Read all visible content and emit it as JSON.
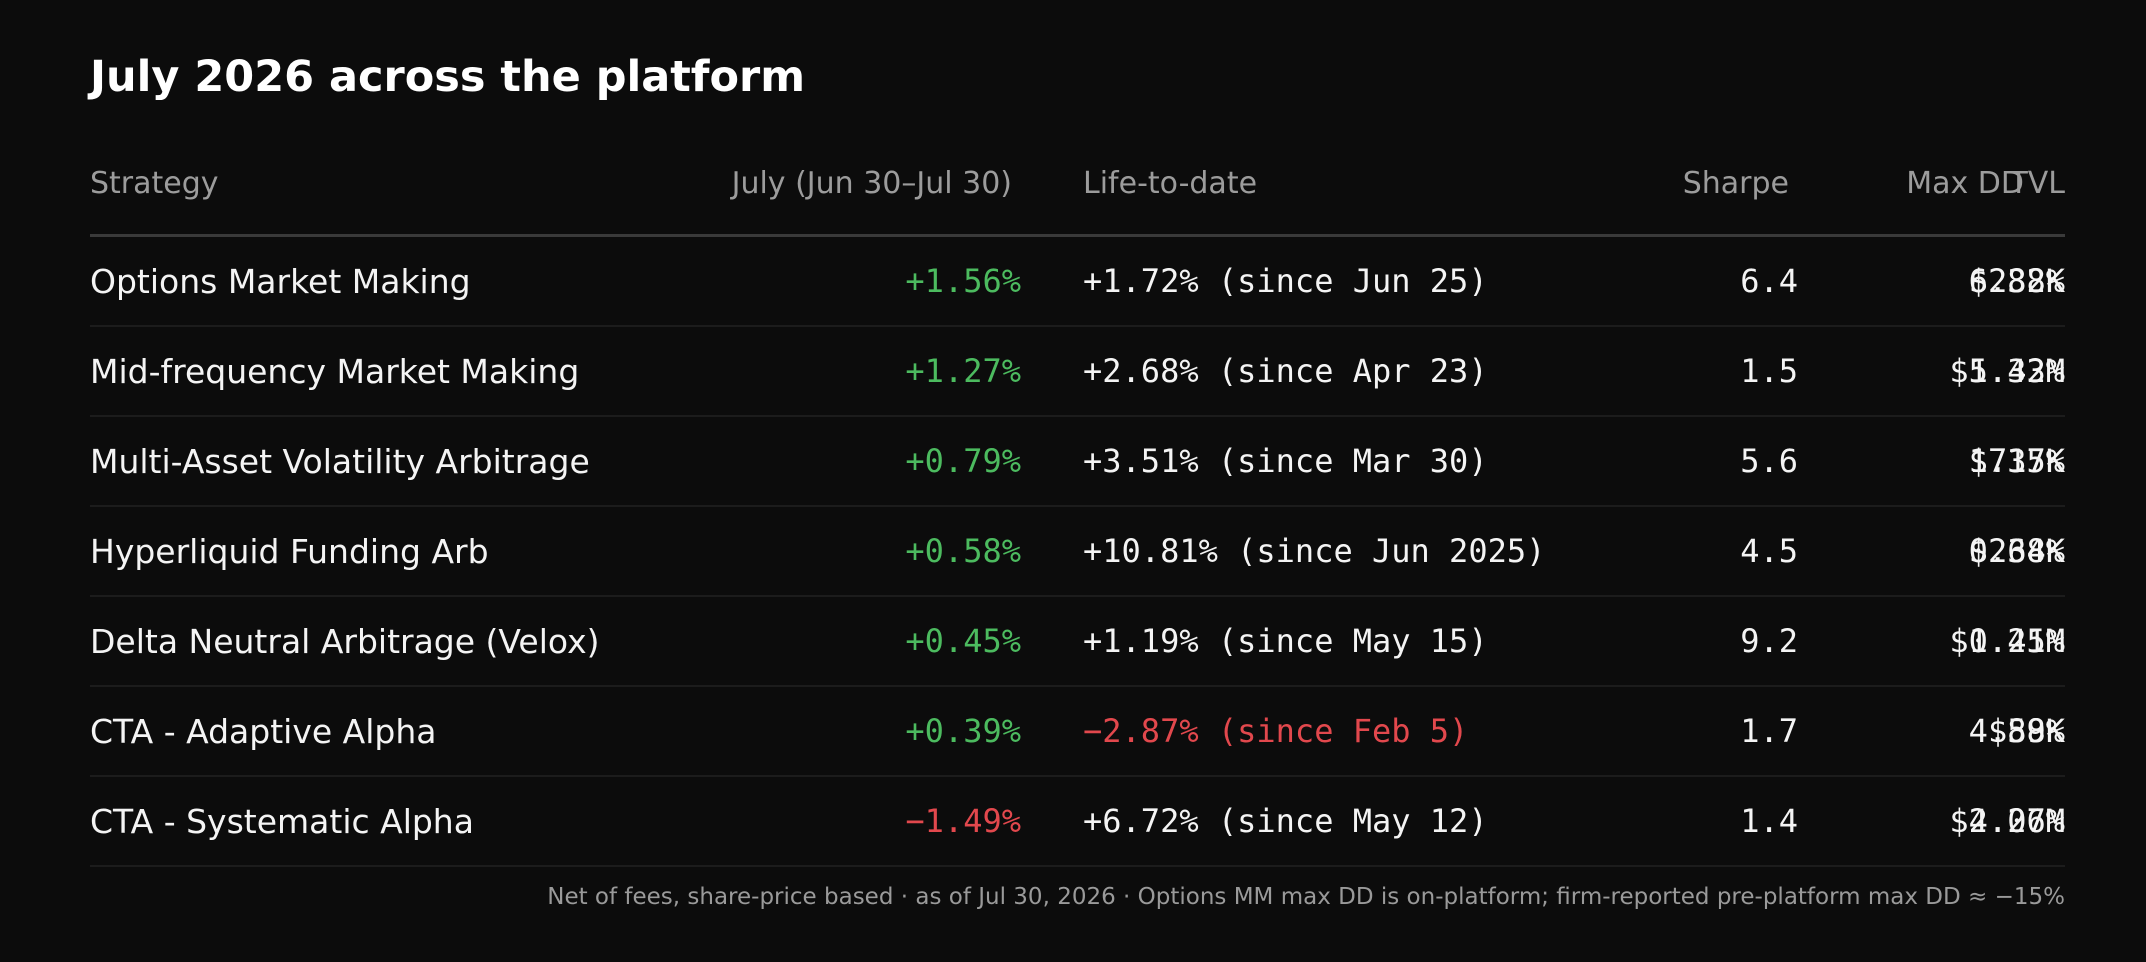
{
  "title": "July 2026 across the platform",
  "columns": {
    "strategy": "Strategy",
    "july": "July (Jun 30–Jul 30)",
    "life_to_date": "Life-to-date",
    "sharpe": "Sharpe",
    "max_dd": "Max DD",
    "tvl": "TVL"
  },
  "rows": [
    {
      "strategy": "Options Market Making",
      "july": "+1.56%",
      "july_status": "positive",
      "life_to_date": "+1.72% (since Jun 25)",
      "ltd_status": "neutral",
      "sharpe": "6.4",
      "max_dd": "6.88%",
      "tvl": "$232K"
    },
    {
      "strategy": "Mid-frequency Market Making",
      "july": "+1.27%",
      "july_status": "positive",
      "life_to_date": "+2.68% (since Apr 23)",
      "ltd_status": "neutral",
      "sharpe": "1.5",
      "max_dd": "5.42%",
      "tvl": "$1.33M"
    },
    {
      "strategy": "Multi-Asset Volatility Arbitrage",
      "july": "+0.79%",
      "july_status": "positive",
      "life_to_date": "+3.51% (since Mar 30)",
      "ltd_status": "neutral",
      "sharpe": "5.6",
      "max_dd": "1.37%",
      "tvl": "$715K"
    },
    {
      "strategy": "Hyperliquid Funding Arb",
      "july": "+0.58%",
      "july_status": "positive",
      "life_to_date": "+10.81% (since Jun 2025)",
      "ltd_status": "neutral",
      "sharpe": "4.5",
      "max_dd": "0.34%",
      "tvl": "$268K"
    },
    {
      "strategy": "Delta Neutral Arbitrage (Velox)",
      "july": "+0.45%",
      "july_status": "positive",
      "life_to_date": "+1.19% (since May 15)",
      "ltd_status": "neutral",
      "sharpe": "9.2",
      "max_dd": "0.21%",
      "tvl": "$1.45M"
    },
    {
      "strategy": "CTA - Adaptive Alpha",
      "july": "+0.39%",
      "july_status": "positive",
      "life_to_date": "−2.87% (since Feb 5)",
      "ltd_status": "negative",
      "sharpe": "1.7",
      "max_dd": "4.59%",
      "tvl": "$88K"
    },
    {
      "strategy": "CTA - Systematic Alpha",
      "july": "−1.49%",
      "july_status": "negative",
      "life_to_date": "+6.72% (since May 12)",
      "ltd_status": "neutral",
      "sharpe": "1.4",
      "max_dd": "4.27%",
      "tvl": "$2.06M"
    }
  ],
  "footnote": "Net of fees, share-price based · as of Jul 30, 2026 · Options MM max DD is on-platform; firm-reported pre-platform max DD ≈ −15%",
  "colors": {
    "background": "#0c0c0c",
    "positive": "#4cbb5f",
    "negative": "#e2484d",
    "header_text": "#9c9c9c"
  }
}
